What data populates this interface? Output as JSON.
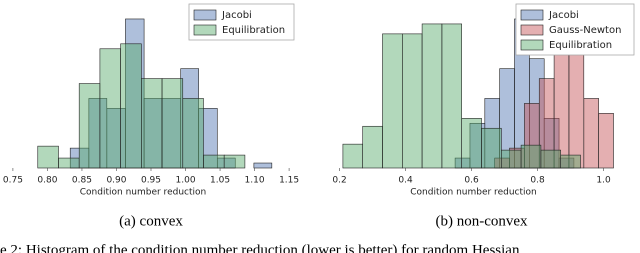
{
  "chart_data": [
    {
      "type": "histogram",
      "caption": "(a) convex",
      "xlabel": "Condition number reduction",
      "xlim": [
        0.74,
        1.16
      ],
      "ylim": [
        0,
        15.5
      ],
      "legend": "upper right",
      "xticks": [
        0.75,
        {
          "value": 0.8,
          "label": "0.80"
        },
        0.85,
        {
          "value": 0.9,
          "label": "0.90"
        },
        0.95,
        {
          "value": 1.0,
          "label": "1.00"
        },
        1.05,
        {
          "value": 1.1,
          "label": "1.10"
        },
        1.15
      ],
      "series": [
        {
          "name": "Jacobi",
          "color": "#4c72b0",
          "bins": [
            0.833,
            0.86,
            0.886,
            0.913,
            0.94,
            0.966,
            0.993,
            1.019,
            1.046,
            1.072,
            1.099,
            1.125
          ],
          "values": [
            2,
            7,
            6,
            15,
            7,
            7,
            10,
            6,
            1,
            0,
            0.5
          ]
        },
        {
          "name": "Equilibration",
          "color": "#55a868",
          "bins": [
            0.786,
            0.816,
            0.846,
            0.876,
            0.906,
            0.936,
            0.966,
            0.996,
            1.026,
            1.056,
            1.086
          ],
          "values": [
            2.2,
            1,
            8.5,
            12,
            12.5,
            9,
            9,
            7,
            1.3,
            1.3
          ]
        }
      ]
    },
    {
      "type": "histogram",
      "caption": "(b) non-convex",
      "xlabel": "Condition number reduction",
      "xlim": [
        0.18,
        1.08
      ],
      "ylim": [
        0,
        15.5
      ],
      "legend": "upper left",
      "xticks": [
        0.2,
        0.4,
        0.6,
        0.8,
        {
          "value": 1.0,
          "label": "1.0"
        }
      ],
      "series": [
        {
          "name": "Jacobi",
          "color": "#4c72b0",
          "bins": [
            0.55,
            0.595,
            0.64,
            0.685,
            0.73,
            0.775,
            0.82,
            0.865,
            0.91
          ],
          "values": [
            1,
            4.5,
            7,
            10,
            15,
            11,
            5,
            1
          ]
        },
        {
          "name": "Gauss-Newton",
          "color": "#c44e52",
          "bins": [
            0.67,
            0.715,
            0.76,
            0.805,
            0.85,
            0.895,
            0.94,
            0.985,
            1.03
          ],
          "values": [
            1,
            2,
            6.5,
            9,
            14,
            14.5,
            7,
            5.5
          ]
        },
        {
          "name": "Equilibration",
          "color": "#55a868",
          "bins": [
            0.21,
            0.27,
            0.33,
            0.39,
            0.45,
            0.51,
            0.57,
            0.63,
            0.69,
            0.75,
            0.81,
            0.87,
            0.93
          ],
          "values": [
            2.4,
            4.2,
            13.5,
            13.5,
            14.5,
            14.5,
            5,
            4,
            1.8,
            2.3,
            1.8,
            1.3
          ]
        }
      ]
    }
  ],
  "figure_caption": "e 2: Histogram of the condition number reduction (lower is better) for random Hessian"
}
